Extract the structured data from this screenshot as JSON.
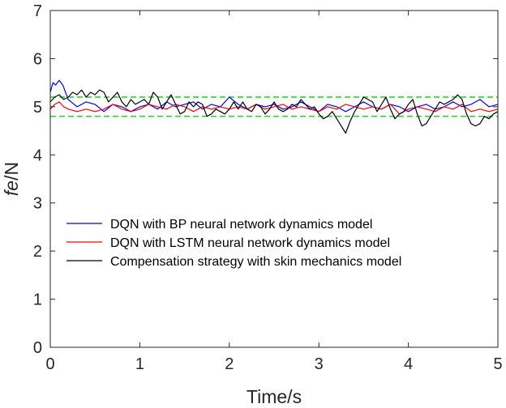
{
  "chart_data": {
    "type": "line",
    "xlabel": "Time/s",
    "ylabel_italic": "fe",
    "ylabel_rest": "/N",
    "xlim": [
      0,
      5
    ],
    "ylim": [
      0,
      7
    ],
    "xticks": [
      0,
      1,
      2,
      3,
      4,
      5
    ],
    "yticks": [
      0,
      1,
      2,
      3,
      4,
      5,
      6,
      7
    ],
    "grid": false,
    "legend_position": "lower-left",
    "reference_lines": {
      "values": [
        4.8,
        5.2
      ],
      "color": "#22dd22",
      "style": "dashed"
    },
    "series": [
      {
        "name": "DQN with BP neural network dynamics model",
        "color": "#0000ff",
        "x": [
          0,
          0.03,
          0.06,
          0.1,
          0.14,
          0.2,
          0.3,
          0.4,
          0.5,
          0.6,
          0.7,
          0.8,
          0.9,
          1.0,
          1.1,
          1.2,
          1.3,
          1.4,
          1.5,
          1.6,
          1.7,
          1.8,
          1.9,
          2.0,
          2.1,
          2.2,
          2.3,
          2.4,
          2.5,
          2.6,
          2.7,
          2.8,
          2.9,
          3.0,
          3.1,
          3.2,
          3.3,
          3.4,
          3.5,
          3.6,
          3.7,
          3.8,
          3.9,
          4.0,
          4.1,
          4.2,
          4.3,
          4.4,
          4.5,
          4.6,
          4.7,
          4.8,
          4.9,
          5.0
        ],
        "y": [
          5.3,
          5.5,
          5.45,
          5.55,
          5.45,
          5.15,
          5.0,
          5.1,
          5.05,
          4.9,
          5.05,
          5.0,
          4.9,
          5.0,
          5.05,
          4.95,
          5.1,
          5.0,
          5.05,
          5.1,
          4.95,
          5.05,
          5.0,
          5.2,
          5.05,
          4.95,
          5.05,
          5.0,
          5.05,
          4.95,
          5.0,
          5.1,
          5.0,
          4.9,
          5.05,
          5.0,
          4.9,
          5.0,
          5.1,
          5.0,
          4.95,
          5.05,
          5.0,
          4.9,
          5.0,
          5.05,
          4.95,
          5.0,
          5.1,
          5.0,
          5.05,
          5.15,
          5.0,
          5.05
        ]
      },
      {
        "name": "DQN with LSTM neural network dynamics model",
        "color": "#ff0000",
        "x": [
          0,
          0.05,
          0.1,
          0.15,
          0.2,
          0.3,
          0.4,
          0.5,
          0.6,
          0.7,
          0.8,
          0.9,
          1.0,
          1.1,
          1.2,
          1.3,
          1.4,
          1.5,
          1.6,
          1.7,
          1.8,
          1.9,
          2.0,
          2.1,
          2.2,
          2.3,
          2.4,
          2.5,
          2.6,
          2.7,
          2.8,
          2.9,
          3.0,
          3.1,
          3.2,
          3.3,
          3.4,
          3.5,
          3.6,
          3.7,
          3.8,
          3.9,
          4.0,
          4.1,
          4.2,
          4.3,
          4.4,
          4.5,
          4.6,
          4.7,
          4.8,
          4.9,
          5.0
        ],
        "y": [
          4.95,
          5.05,
          5.1,
          5.0,
          4.95,
          4.9,
          4.95,
          4.9,
          4.95,
          5.05,
          4.95,
          4.9,
          4.95,
          5.05,
          5.0,
          4.95,
          5.05,
          5.0,
          4.9,
          5.0,
          4.95,
          5.0,
          4.95,
          5.0,
          4.95,
          5.05,
          4.95,
          5.0,
          5.05,
          4.95,
          5.0,
          4.95,
          4.9,
          5.0,
          4.95,
          5.05,
          5.0,
          4.95,
          5.0,
          4.95,
          5.05,
          4.85,
          4.95,
          5.0,
          4.95,
          4.9,
          5.0,
          4.95,
          5.05,
          4.9,
          4.95,
          4.9,
          4.95
        ]
      },
      {
        "name": "Compensation strategy with skin mechanics model",
        "color": "#000000",
        "x": [
          0,
          0.05,
          0.1,
          0.15,
          0.2,
          0.25,
          0.3,
          0.35,
          0.4,
          0.45,
          0.5,
          0.55,
          0.6,
          0.65,
          0.7,
          0.75,
          0.8,
          0.85,
          0.9,
          0.95,
          1.0,
          1.05,
          1.1,
          1.15,
          1.2,
          1.25,
          1.3,
          1.35,
          1.4,
          1.45,
          1.5,
          1.55,
          1.6,
          1.65,
          1.7,
          1.75,
          1.8,
          1.85,
          1.9,
          1.95,
          2.0,
          2.05,
          2.1,
          2.15,
          2.2,
          2.25,
          2.3,
          2.35,
          2.4,
          2.45,
          2.5,
          2.55,
          2.6,
          2.65,
          2.7,
          2.75,
          2.8,
          2.85,
          2.9,
          2.95,
          3.0,
          3.05,
          3.1,
          3.15,
          3.2,
          3.25,
          3.3,
          3.35,
          3.4,
          3.45,
          3.5,
          3.55,
          3.6,
          3.65,
          3.7,
          3.75,
          3.8,
          3.85,
          3.9,
          3.95,
          4.0,
          4.05,
          4.1,
          4.15,
          4.2,
          4.25,
          4.3,
          4.35,
          4.4,
          4.45,
          4.5,
          4.55,
          4.6,
          4.65,
          4.7,
          4.75,
          4.8,
          4.85,
          4.9,
          4.95,
          5.0
        ],
        "y": [
          5.1,
          5.2,
          5.25,
          5.15,
          5.2,
          5.3,
          5.25,
          5.35,
          5.2,
          5.3,
          5.25,
          5.35,
          5.3,
          5.1,
          5.2,
          5.3,
          5.1,
          5.0,
          5.15,
          5.05,
          5.1,
          5.15,
          5.05,
          5.3,
          5.2,
          4.95,
          5.1,
          5.25,
          5.05,
          4.85,
          4.9,
          5.1,
          5.0,
          5.1,
          5.05,
          4.8,
          4.85,
          4.95,
          4.9,
          4.85,
          4.95,
          5.1,
          4.95,
          5.1,
          4.95,
          4.9,
          5.05,
          5.0,
          4.85,
          4.95,
          5.1,
          4.95,
          4.9,
          4.95,
          5.05,
          5.0,
          5.15,
          5.05,
          4.95,
          5.0,
          4.85,
          4.75,
          4.8,
          4.9,
          4.75,
          4.6,
          4.45,
          4.7,
          4.9,
          5.05,
          5.2,
          5.15,
          5.1,
          4.9,
          5.05,
          5.2,
          4.95,
          4.75,
          4.85,
          4.9,
          5.05,
          5.15,
          4.85,
          4.6,
          4.65,
          4.8,
          4.95,
          5.1,
          5.05,
          5.1,
          5.15,
          5.25,
          5.15,
          4.85,
          4.65,
          4.6,
          4.65,
          4.8,
          4.75,
          4.85,
          4.9
        ]
      }
    ]
  }
}
